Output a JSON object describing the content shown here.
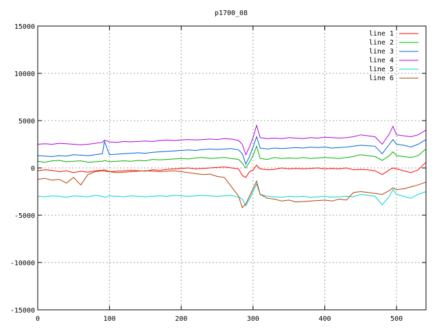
{
  "chart_data": {
    "type": "line",
    "title": "p1700_08",
    "xlabel": "",
    "ylabel": "",
    "xlim": [
      0,
      541
    ],
    "ylim": [
      -15000,
      15000
    ],
    "xticks": [
      0,
      100,
      200,
      300,
      400,
      500
    ],
    "yticks": [
      -15000,
      -10000,
      -5000,
      0,
      5000,
      10000,
      15000
    ],
    "grid": true,
    "legend_position": "top-right",
    "x": [
      0,
      10,
      20,
      30,
      40,
      50,
      60,
      70,
      80,
      90,
      93,
      100,
      110,
      120,
      130,
      140,
      150,
      160,
      170,
      180,
      190,
      200,
      210,
      220,
      230,
      240,
      250,
      260,
      270,
      280,
      285,
      290,
      295,
      300,
      305,
      310,
      320,
      330,
      340,
      350,
      360,
      370,
      380,
      390,
      400,
      410,
      420,
      430,
      440,
      450,
      460,
      470,
      480,
      490,
      495,
      500,
      510,
      520,
      530,
      541
    ],
    "series": [
      {
        "name": "line 1",
        "color": "#ff0000",
        "values": [
          -300,
          -200,
          -250,
          -400,
          -300,
          -500,
          -350,
          -450,
          -300,
          -250,
          -200,
          -400,
          -350,
          -300,
          -250,
          -300,
          -350,
          -200,
          -250,
          -150,
          -100,
          -50,
          0,
          -100,
          -50,
          0,
          50,
          100,
          0,
          -100,
          -800,
          -1000,
          -400,
          -200,
          300,
          -100,
          -200,
          -150,
          0,
          -100,
          -50,
          -100,
          -50,
          0,
          -100,
          -50,
          -100,
          0,
          -200,
          -150,
          -200,
          -300,
          -700,
          -200,
          0,
          -100,
          -300,
          -500,
          -200,
          600
        ]
      },
      {
        "name": "line 2",
        "color": "#00b000",
        "values": [
          700,
          600,
          750,
          800,
          650,
          700,
          750,
          600,
          650,
          700,
          800,
          650,
          700,
          750,
          700,
          800,
          750,
          900,
          850,
          900,
          950,
          1000,
          950,
          1050,
          1100,
          1000,
          1050,
          1100,
          1000,
          900,
          500,
          0,
          600,
          1300,
          2300,
          1000,
          900,
          1100,
          1000,
          1050,
          1000,
          1100,
          1000,
          1050,
          1100,
          1050,
          1000,
          1100,
          1200,
          1400,
          1300,
          1200,
          800,
          1300,
          1700,
          1300,
          1200,
          1100,
          1300,
          2000
        ]
      },
      {
        "name": "line 3",
        "color": "#0060e0",
        "values": [
          1300,
          1250,
          1200,
          1300,
          1250,
          1400,
          1350,
          1300,
          1400,
          1500,
          2800,
          1400,
          1450,
          1500,
          1550,
          1600,
          1550,
          1650,
          1700,
          1750,
          1800,
          1850,
          1900,
          1850,
          1950,
          2000,
          1950,
          2000,
          2050,
          1900,
          1500,
          400,
          1200,
          2200,
          3300,
          2100,
          2000,
          2100,
          2050,
          2100,
          2150,
          2100,
          2200,
          2150,
          2200,
          2100,
          2150,
          2200,
          2300,
          2400,
          2350,
          2300,
          1500,
          2500,
          3000,
          2500,
          2400,
          2200,
          2500,
          3000
        ]
      },
      {
        "name": "line 4",
        "color": "#b000d8",
        "values": [
          2500,
          2550,
          2500,
          2600,
          2550,
          2500,
          2450,
          2500,
          2600,
          2700,
          2950,
          2750,
          2700,
          2800,
          2750,
          2800,
          2850,
          2800,
          2900,
          2950,
          2900,
          2950,
          3000,
          2950,
          3000,
          3050,
          3000,
          3100,
          3050,
          2900,
          2500,
          1400,
          2200,
          3200,
          4500,
          3200,
          3100,
          3150,
          3100,
          3200,
          3150,
          3100,
          3200,
          3150,
          3250,
          3200,
          3150,
          3200,
          3300,
          3500,
          3400,
          3300,
          2500,
          3600,
          4400,
          3500,
          3400,
          3300,
          3500,
          4000
        ]
      },
      {
        "name": "line 5",
        "color": "#00d0d0",
        "values": [
          -3000,
          -3050,
          -2950,
          -3000,
          -3100,
          -2950,
          -3000,
          -3050,
          -2900,
          -3000,
          -3100,
          -2950,
          -3000,
          -3050,
          -2950,
          -3000,
          -3050,
          -3000,
          -2950,
          -3000,
          -2900,
          -2950,
          -3000,
          -2950,
          -2900,
          -2950,
          -3000,
          -2950,
          -2900,
          -3100,
          -3300,
          -4000,
          -3300,
          -2500,
          -1700,
          -2800,
          -3000,
          -3050,
          -3100,
          -3000,
          -3050,
          -3000,
          -3100,
          -3050,
          -3000,
          -3100,
          -3050,
          -3000,
          -3050,
          -2800,
          -2900,
          -3000,
          -3900,
          -3000,
          -2300,
          -2800,
          -3000,
          -3200,
          -2800,
          -2500
        ]
      },
      {
        "name": "line 6",
        "color": "#b04000",
        "values": [
          -1200,
          -1100,
          -1300,
          -1200,
          -1600,
          -1000,
          -1800,
          -700,
          -400,
          -300,
          -350,
          -400,
          -500,
          -450,
          -400,
          -350,
          -300,
          -350,
          -400,
          -350,
          -300,
          -400,
          -500,
          -600,
          -700,
          -650,
          -900,
          -1000,
          -2000,
          -3000,
          -4200,
          -3800,
          -3000,
          -2200,
          -1400,
          -2800,
          -3200,
          -3300,
          -3500,
          -3400,
          -3600,
          -3550,
          -3500,
          -3450,
          -3400,
          -3500,
          -3300,
          -3400,
          -2600,
          -2500,
          -2600,
          -2700,
          -2800,
          -2400,
          -2100,
          -2300,
          -2200,
          -2000,
          -1800,
          -1500
        ]
      }
    ]
  }
}
